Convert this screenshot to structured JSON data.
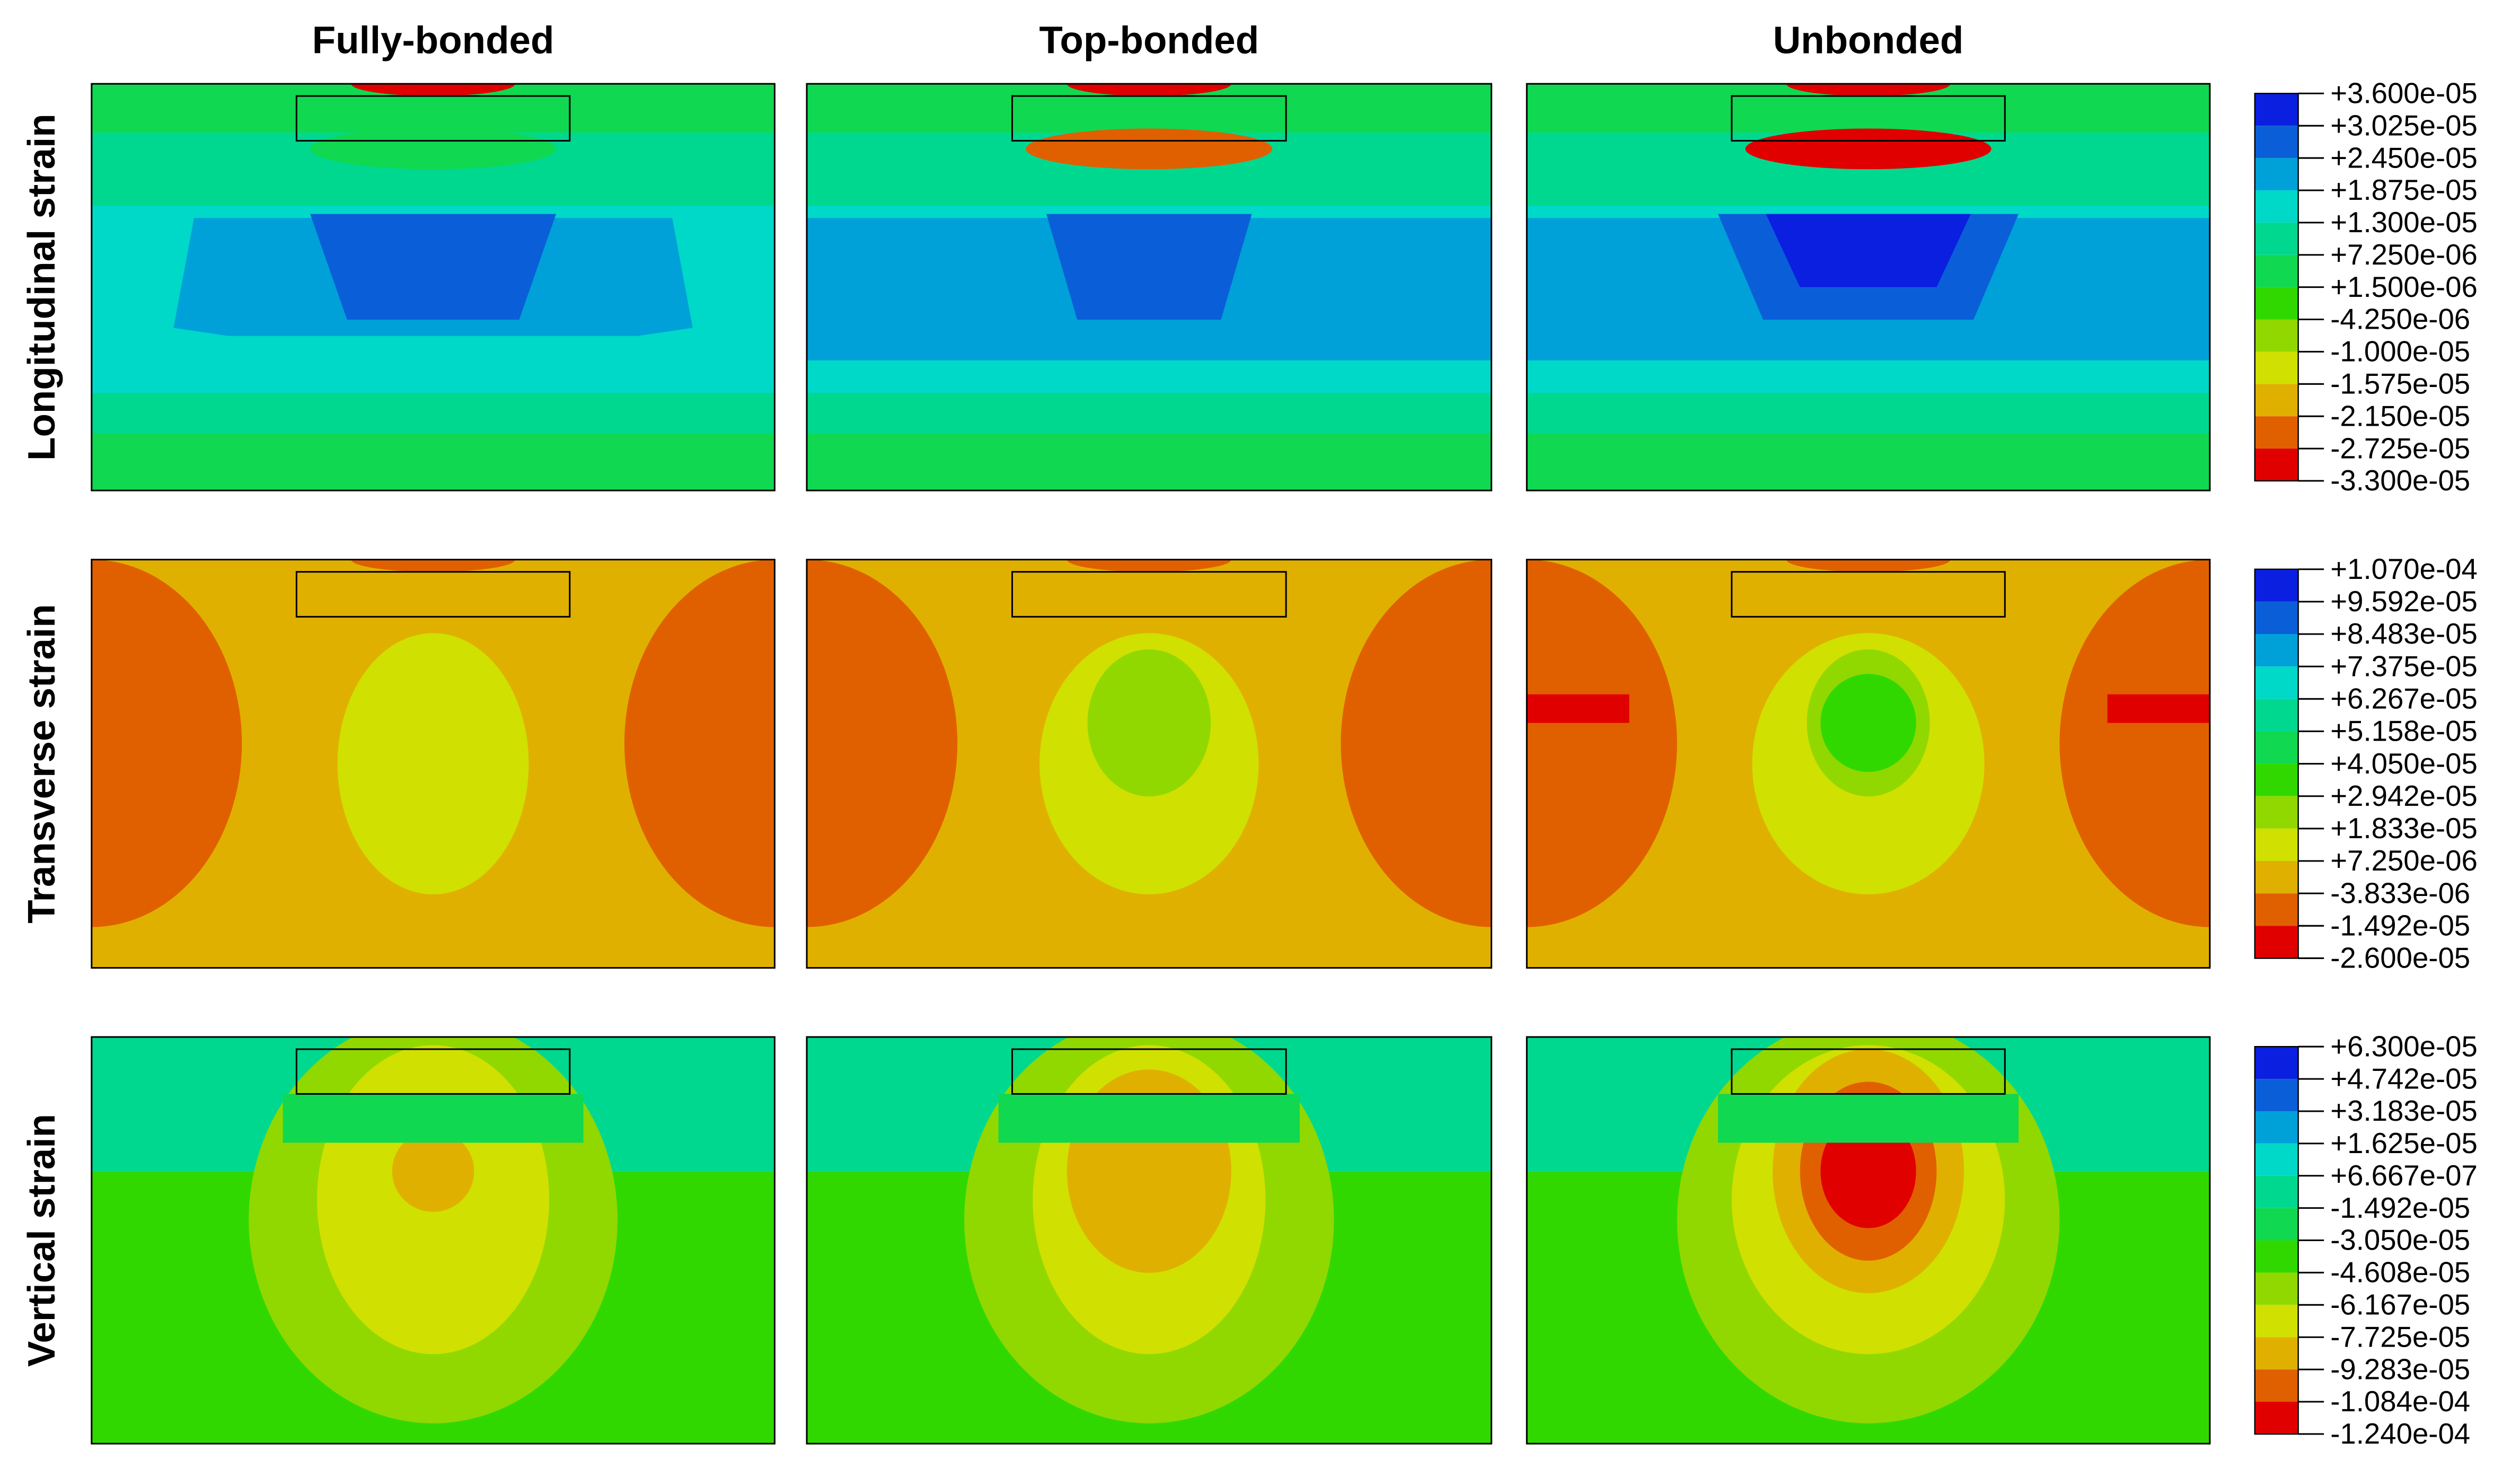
{
  "columns": [
    "Fully-bonded",
    "Top-bonded",
    "Unbonded"
  ],
  "rows": [
    {
      "label": "Longitudinal strain",
      "legend": [
        "+3.600e-05",
        "+3.025e-05",
        "+2.450e-05",
        "+1.875e-05",
        "+1.300e-05",
        "+7.250e-06",
        "+1.500e-06",
        "-4.250e-06",
        "-1.000e-05",
        "-1.575e-05",
        "-2.150e-05",
        "-2.725e-05",
        "-3.300e-05"
      ]
    },
    {
      "label": "Transverse strain",
      "legend": [
        "+1.070e-04",
        "+9.592e-05",
        "+8.483e-05",
        "+7.375e-05",
        "+6.267e-05",
        "+5.158e-05",
        "+4.050e-05",
        "+2.942e-05",
        "+1.833e-05",
        "+7.250e-06",
        "-3.833e-06",
        "-1.492e-05",
        "-2.600e-05"
      ]
    },
    {
      "label": "Vertical strain",
      "legend": [
        "+6.300e-05",
        "+4.742e-05",
        "+3.183e-05",
        "+1.625e-05",
        "+6.667e-07",
        "-1.492e-05",
        "-3.050e-05",
        "-4.608e-05",
        "-6.167e-05",
        "-7.725e-05",
        "-9.283e-05",
        "-1.084e-04",
        "-1.240e-04"
      ]
    }
  ],
  "colors": [
    "#0a1fe0",
    "#0a5fd8",
    "#00a0d8",
    "#00d8c8",
    "#00d890",
    "#10d850",
    "#30d800",
    "#90d800",
    "#d0e000",
    "#e0b000",
    "#e06000",
    "#e00000"
  ]
}
